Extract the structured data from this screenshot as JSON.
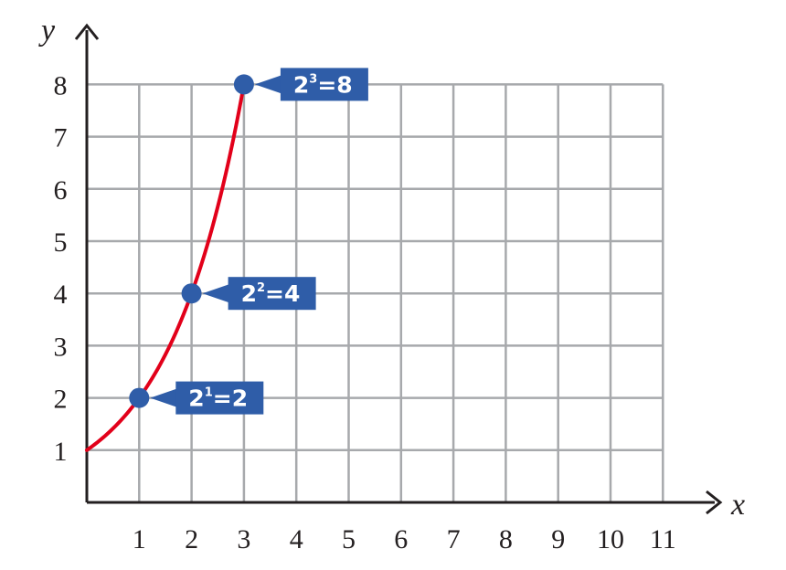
{
  "chart_data": {
    "type": "line",
    "xlabel": "x",
    "ylabel": "y",
    "xlim": [
      0,
      11
    ],
    "ylim": [
      0,
      8
    ],
    "x_ticks": [
      "1",
      "2",
      "3",
      "4",
      "5",
      "6",
      "7",
      "8",
      "9",
      "10",
      "11"
    ],
    "y_ticks": [
      "1",
      "2",
      "3",
      "4",
      "5",
      "6",
      "7",
      "8"
    ],
    "grid": true,
    "series": [
      {
        "function": "2^x",
        "x": [
          0,
          0.5,
          1,
          1.5,
          2,
          2.5,
          3
        ],
        "y": [
          1,
          1.41,
          2,
          2.83,
          4,
          5.66,
          8
        ],
        "color": "#e2001a"
      }
    ],
    "points": [
      {
        "x": 1,
        "y": 2,
        "base": "2",
        "exp": "1",
        "result": "=2"
      },
      {
        "x": 2,
        "y": 4,
        "base": "2",
        "exp": "2",
        "result": "=4"
      },
      {
        "x": 3,
        "y": 8,
        "base": "2",
        "exp": "3",
        "result": "=8"
      }
    ],
    "colors": {
      "curve": "#e2001a",
      "point": "#2f5da8",
      "callout": "#2f5da8",
      "grid": "#a7a9ac",
      "axis": "#231f20"
    }
  }
}
